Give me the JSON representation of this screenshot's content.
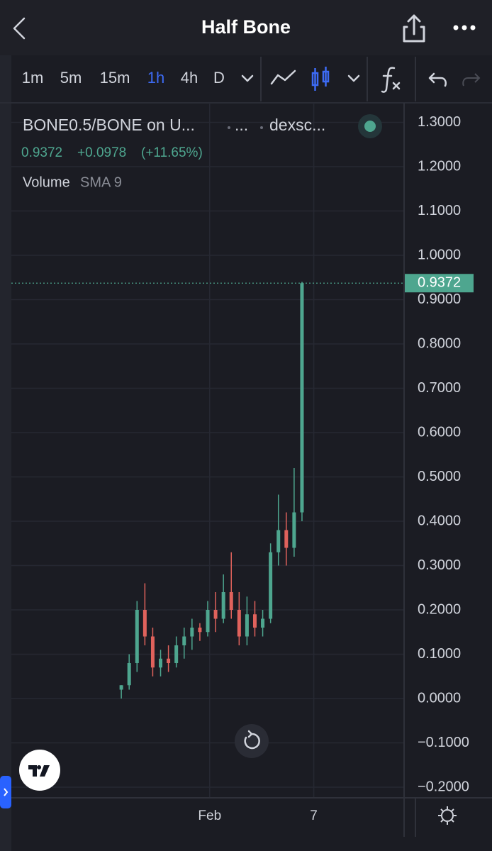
{
  "header": {
    "title": "Half Bone"
  },
  "toolbar": {
    "intervals": [
      "1m",
      "5m",
      "15m",
      "1h",
      "4h",
      "D"
    ]
  },
  "chart_data": {
    "type": "candlestick",
    "symbol": "BONE0.5/BONE on U...",
    "separator_1": "...",
    "source": "dexsc...",
    "quote": {
      "last": 0.9372,
      "change": "+0.0978",
      "change_pct": "(+11.65%)"
    },
    "indicator": {
      "name": "Volume",
      "params": "SMA 9"
    },
    "x": [
      28,
      30,
      32,
      34,
      36,
      38,
      40,
      42,
      44,
      46,
      48,
      50,
      52,
      54,
      56,
      58,
      60,
      62,
      64,
      66,
      68,
      70,
      72,
      74
    ],
    "open": [
      0.02,
      0.03,
      0.08,
      0.2,
      0.14,
      0.07,
      0.09,
      0.08,
      0.12,
      0.14,
      0.16,
      0.15,
      0.2,
      0.18,
      0.24,
      0.2,
      0.14,
      0.19,
      0.16,
      0.18,
      0.33,
      0.38,
      0.34,
      0.42
    ],
    "high": [
      0.03,
      0.1,
      0.22,
      0.26,
      0.16,
      0.11,
      0.12,
      0.14,
      0.16,
      0.18,
      0.17,
      0.22,
      0.24,
      0.28,
      0.33,
      0.24,
      0.23,
      0.22,
      0.2,
      0.35,
      0.46,
      0.42,
      0.52,
      0.94
    ],
    "low": [
      0.0,
      0.02,
      0.06,
      0.12,
      0.05,
      0.05,
      0.06,
      0.07,
      0.09,
      0.11,
      0.13,
      0.14,
      0.15,
      0.17,
      0.18,
      0.12,
      0.12,
      0.14,
      0.14,
      0.17,
      0.3,
      0.3,
      0.32,
      0.4
    ],
    "close": [
      0.03,
      0.08,
      0.2,
      0.14,
      0.07,
      0.09,
      0.08,
      0.12,
      0.14,
      0.16,
      0.15,
      0.2,
      0.18,
      0.24,
      0.2,
      0.14,
      0.19,
      0.16,
      0.18,
      0.33,
      0.38,
      0.34,
      0.42,
      0.9372
    ],
    "up_color": "#4ea68f",
    "down_color": "#e0625c",
    "xlim": [
      0,
      100
    ],
    "xticks": [
      {
        "value": 50.5,
        "label": "Feb"
      },
      {
        "value": 77,
        "label": "7"
      }
    ],
    "ylim": [
      -0.224,
      1.344
    ],
    "yticks": [
      {
        "value": 1.3,
        "label": "1.3000"
      },
      {
        "value": 1.2,
        "label": "1.2000"
      },
      {
        "value": 1.1,
        "label": "1.1000"
      },
      {
        "value": 1.0,
        "label": "1.0000"
      },
      {
        "value": 0.9,
        "label": "0.9000"
      },
      {
        "value": 0.8,
        "label": "0.8000"
      },
      {
        "value": 0.7,
        "label": "0.7000"
      },
      {
        "value": 0.6,
        "label": "0.6000"
      },
      {
        "value": 0.5,
        "label": "0.5000"
      },
      {
        "value": 0.4,
        "label": "0.4000"
      },
      {
        "value": 0.3,
        "label": "0.3000"
      },
      {
        "value": 0.2,
        "label": "0.2000"
      },
      {
        "value": 0.1,
        "label": "0.1000"
      },
      {
        "value": 0,
        "label": "0.0000"
      },
      {
        "value": -0.1,
        "label": "−0.1000"
      },
      {
        "value": -0.2,
        "label": "−0.2000"
      }
    ],
    "grid": true
  }
}
